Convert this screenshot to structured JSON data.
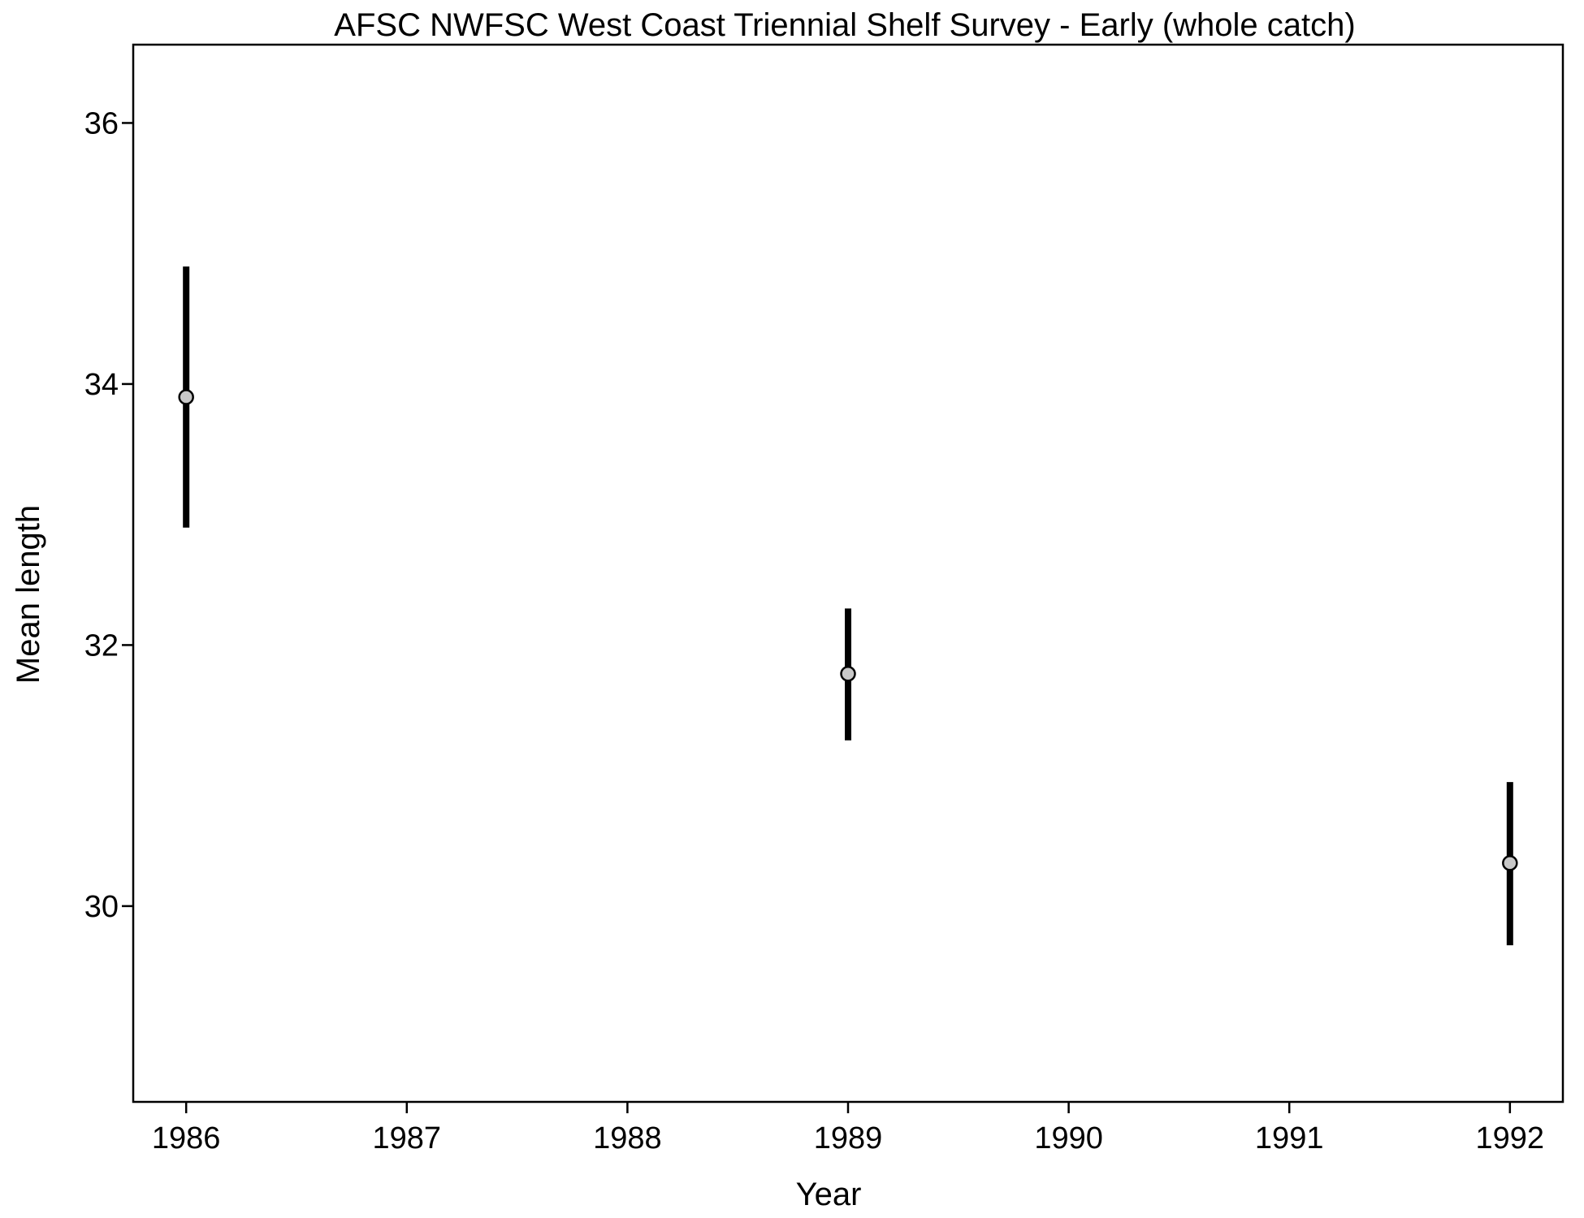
{
  "chart_data": {
    "type": "scatter",
    "title": "AFSC NWFSC West Coast Triennial Shelf Survey - Early (whole catch)",
    "xlabel": "Year",
    "ylabel": "Mean length",
    "xlim": [
      1985.76,
      1992.24
    ],
    "ylim": [
      28.5,
      36.6
    ],
    "x_ticks": [
      1986,
      1987,
      1988,
      1989,
      1990,
      1991,
      1992
    ],
    "y_ticks": [
      30,
      32,
      34,
      36
    ],
    "grid": false,
    "series": [
      {
        "points": [
          {
            "x": 1986,
            "y": 33.9,
            "lower": 32.9,
            "upper": 34.9
          },
          {
            "x": 1989,
            "y": 31.78,
            "lower": 31.27,
            "upper": 32.28
          },
          {
            "x": 1992,
            "y": 30.33,
            "lower": 29.7,
            "upper": 30.95
          }
        ],
        "marker_fill": "#c8c8c8",
        "errorbar_color": "#000000"
      }
    ]
  }
}
